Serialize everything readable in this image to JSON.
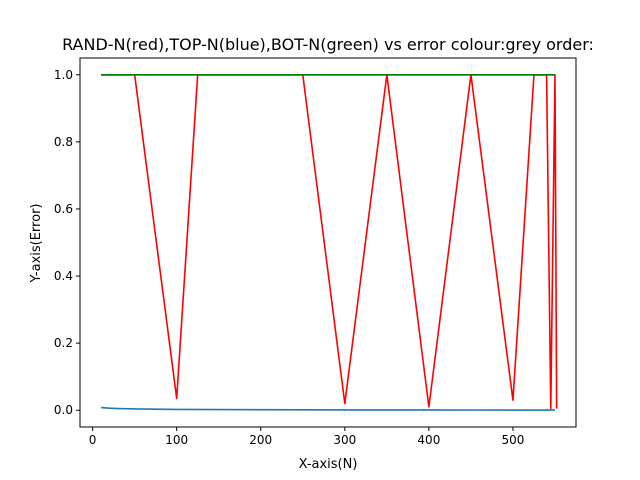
{
  "chart_data": {
    "type": "line",
    "title": "RAND-N(red),TOP-N(blue),BOT-N(green) vs error colour:grey order:",
    "xlabel": "X-axis(N)",
    "ylabel": "Y-axis(Error)",
    "xlim": [
      -15,
      575
    ],
    "ylim": [
      -0.05,
      1.05
    ],
    "xticks": [
      0,
      100,
      200,
      300,
      400,
      500
    ],
    "yticks": [
      0.0,
      0.2,
      0.4,
      0.6,
      0.8,
      1.0
    ],
    "xtick_labels": [
      "0",
      "100",
      "200",
      "300",
      "400",
      "500"
    ],
    "ytick_labels": [
      "0.0",
      "0.2",
      "0.4",
      "0.6",
      "0.8",
      "1.0"
    ],
    "grid": false,
    "series": [
      {
        "color": "#1f77b4",
        "x": [
          10,
          20,
          30,
          50,
          75,
          100,
          150,
          200,
          250,
          300,
          350,
          400,
          450,
          500,
          550
        ],
        "y": [
          0.008,
          0.006,
          0.005,
          0.004,
          0.003,
          0.0025,
          0.002,
          0.0015,
          0.0012,
          0.001,
          0.0009,
          0.0008,
          0.0007,
          0.0006,
          0.0005
        ]
      },
      {
        "color": "#808080",
        "x": [
          10,
          550
        ],
        "y": [
          1.0,
          1.0
        ]
      },
      {
        "color": "#ff0000",
        "x": [
          10,
          50,
          100,
          125,
          250,
          300,
          350,
          400,
          450,
          500,
          525,
          540,
          545,
          550,
          552
        ],
        "y": [
          1.0,
          1.0,
          0.035,
          1.0,
          1.0,
          0.02,
          1.0,
          0.01,
          1.0,
          0.03,
          1.0,
          1.0,
          0.005,
          1.0,
          0.005
        ]
      },
      {
        "color": "#008000",
        "x": [
          10,
          550
        ],
        "y": [
          1.0,
          1.0
        ]
      }
    ]
  }
}
